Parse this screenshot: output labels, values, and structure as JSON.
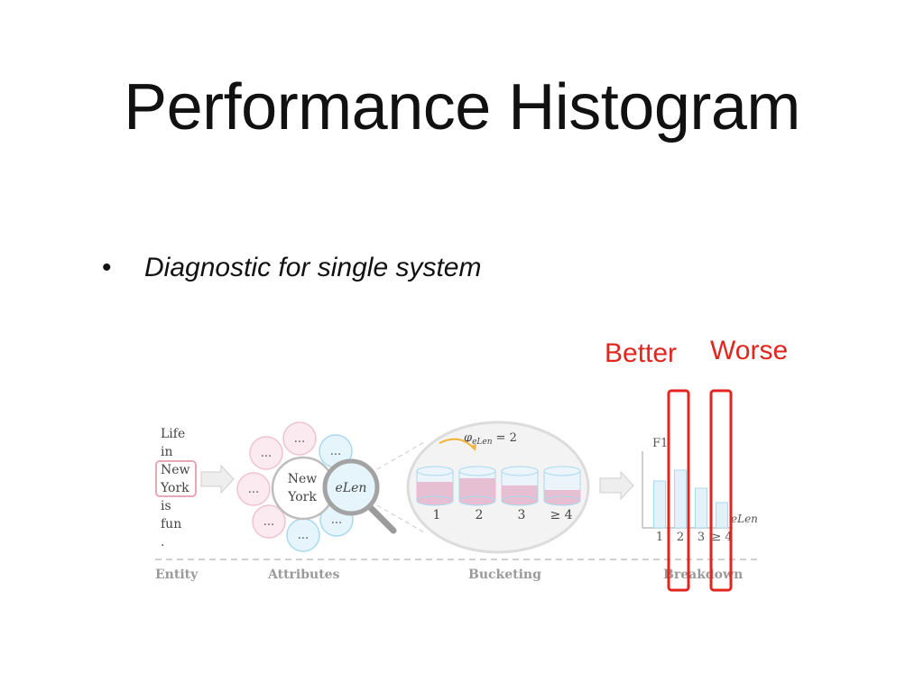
{
  "slide": {
    "title": "Performance Histogram",
    "bullet_symbol": "•",
    "bullet_text": "Diagnostic for single system"
  },
  "annotations": {
    "better": "Better",
    "worse": "Worse",
    "color": "#e0261f"
  },
  "figure": {
    "sentence_words": [
      "Life",
      "in",
      "New",
      "York",
      "is",
      "fun",
      "."
    ],
    "highlighted_entity": "New York",
    "center_node": [
      "New",
      "York"
    ],
    "attribute_label": "eLen",
    "ellipsis": "...",
    "bucket_formula": "φ",
    "bucket_formula_sub": "eLen",
    "bucket_formula_rhs": "= 2",
    "bucket_labels": [
      "1",
      "2",
      "3",
      "≥ 4"
    ],
    "histogram_ylabel": "F1",
    "histogram_xlabel": "eLen",
    "histogram_ticks": [
      "1",
      "2",
      "3",
      "≥ 4"
    ],
    "histogram_values": [
      0.65,
      0.8,
      0.55,
      0.35
    ],
    "stage_labels": [
      "Entity",
      "Attributes",
      "Bucketing",
      "Breakdown"
    ]
  }
}
